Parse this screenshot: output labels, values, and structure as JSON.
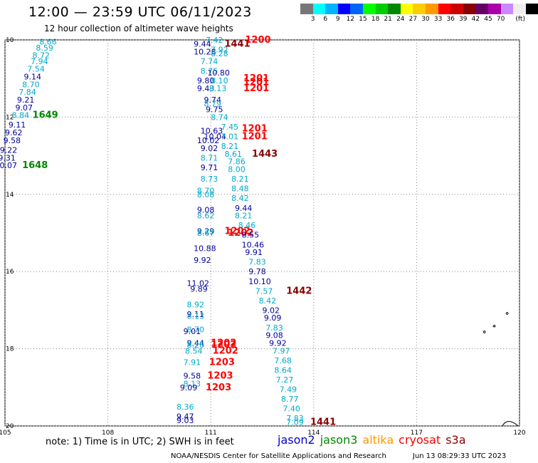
{
  "header": {
    "title": "12:00 — 23:59 UTC 06/11/2023",
    "subtitle": "12 hour collection of altimeter wave heights"
  },
  "colorbar": {
    "colors": [
      "#777777",
      "#00ffff",
      "#00b4ff",
      "#0000ff",
      "#0066ff",
      "#00ff00",
      "#00cc00",
      "#008800",
      "#ffff00",
      "#ffcc00",
      "#ff9900",
      "#ff0000",
      "#cc0000",
      "#880000",
      "#660066",
      "#aa00aa",
      "#cc88ff",
      "#eeeeee",
      "#000000"
    ],
    "labels": [
      "3",
      "6",
      "9",
      "12",
      "15",
      "18",
      "21",
      "24",
      "27",
      "30",
      "33",
      "36",
      "39",
      "42",
      "45",
      "70",
      "(ft)"
    ]
  },
  "axes": {
    "lat_ticks": [
      "10",
      "12",
      "14",
      "16",
      "18",
      "20"
    ],
    "lon_ticks": [
      "105",
      "108",
      "111",
      "114",
      "117",
      "120"
    ],
    "lon_range": [
      105,
      120
    ],
    "lat_range": [
      10,
      20
    ]
  },
  "sat_colors": {
    "jason2": "#0000cc",
    "jason3": "#008800",
    "altika": "#ff9900",
    "cryosat": "#ff0000",
    "s3a": "#880000",
    "cyan": "#00aacc",
    "darkblue": "#000099"
  },
  "observations": [
    {
      "text": "8.66",
      "lon": 106.0,
      "lat": 10.05,
      "c": "cyan"
    },
    {
      "text": "8.59",
      "lon": 105.9,
      "lat": 10.2,
      "c": "cyan"
    },
    {
      "text": "8.72",
      "lon": 105.8,
      "lat": 10.4,
      "c": "cyan"
    },
    {
      "text": "7.94",
      "lon": 105.75,
      "lat": 10.55,
      "c": "cyan"
    },
    {
      "text": "7.54",
      "lon": 105.65,
      "lat": 10.75,
      "c": "cyan"
    },
    {
      "text": "9.14",
      "lon": 105.55,
      "lat": 10.95,
      "c": "darkblue"
    },
    {
      "text": "8.70",
      "lon": 105.5,
      "lat": 11.15,
      "c": "cyan"
    },
    {
      "text": "7.84",
      "lon": 105.4,
      "lat": 11.35,
      "c": "cyan"
    },
    {
      "text": "9.21",
      "lon": 105.35,
      "lat": 11.55,
      "c": "darkblue"
    },
    {
      "text": "9.07",
      "lon": 105.3,
      "lat": 11.75,
      "c": "darkblue"
    },
    {
      "text": "8.84",
      "lon": 105.2,
      "lat": 11.95,
      "c": "cyan"
    },
    {
      "text": "9.11",
      "lon": 105.1,
      "lat": 12.2,
      "c": "darkblue"
    },
    {
      "text": "9.62",
      "lon": 105.0,
      "lat": 12.4,
      "c": "darkblue"
    },
    {
      "text": "9.58",
      "lon": 104.95,
      "lat": 12.6,
      "c": "darkblue"
    },
    {
      "text": "9.22",
      "lon": 104.85,
      "lat": 12.85,
      "c": "darkblue"
    },
    {
      "text": "9.31",
      "lon": 104.8,
      "lat": 13.05,
      "c": "darkblue"
    },
    {
      "text": "10.07",
      "lon": 104.7,
      "lat": 13.25,
      "c": "darkblue"
    },
    {
      "text": "1649",
      "lon": 105.8,
      "lat": 11.95,
      "c": "jason3",
      "big": true
    },
    {
      "text": "1648",
      "lon": 105.5,
      "lat": 13.25,
      "c": "jason3",
      "big": true
    },
    {
      "text": "7.42",
      "lon": 110.85,
      "lat": 10.0,
      "c": "cyan"
    },
    {
      "text": "9.44",
      "lon": 110.5,
      "lat": 10.1,
      "c": "darkblue"
    },
    {
      "text": "1441",
      "lon": 111.4,
      "lat": 10.1,
      "c": "s3a",
      "big": true
    },
    {
      "text": "1200",
      "lon": 112.0,
      "lat": 10.0,
      "c": "cryosat",
      "big": true
    },
    {
      "text": "7.92",
      "lon": 111.0,
      "lat": 10.25,
      "c": "cyan"
    },
    {
      "text": "10.28",
      "lon": 110.5,
      "lat": 10.3,
      "c": "darkblue"
    },
    {
      "text": "8.28",
      "lon": 111.0,
      "lat": 10.35,
      "c": "cyan"
    },
    {
      "text": "7.74",
      "lon": 110.7,
      "lat": 10.55,
      "c": "cyan"
    },
    {
      "text": "8.75",
      "lon": 110.7,
      "lat": 10.8,
      "c": "cyan"
    },
    {
      "text": "10.80",
      "lon": 110.9,
      "lat": 10.85,
      "c": "darkblue"
    },
    {
      "text": "9.80",
      "lon": 110.6,
      "lat": 11.05,
      "c": "darkblue"
    },
    {
      "text": "8.10",
      "lon": 111.0,
      "lat": 11.05,
      "c": "cyan"
    },
    {
      "text": "1201",
      "lon": 111.95,
      "lat": 11.0,
      "c": "cryosat",
      "big": true
    },
    {
      "text": "1201",
      "lon": 111.95,
      "lat": 11.1,
      "c": "cryosat",
      "big": true
    },
    {
      "text": "9.43",
      "lon": 110.6,
      "lat": 11.25,
      "c": "darkblue"
    },
    {
      "text": "8.13",
      "lon": 110.95,
      "lat": 11.25,
      "c": "cyan"
    },
    {
      "text": "1201",
      "lon": 111.95,
      "lat": 11.25,
      "c": "cryosat",
      "big": true
    },
    {
      "text": "9.74",
      "lon": 110.8,
      "lat": 11.55,
      "c": "darkblue"
    },
    {
      "text": "8.79",
      "lon": 110.8,
      "lat": 11.65,
      "c": "cyan"
    },
    {
      "text": "9.75",
      "lon": 110.85,
      "lat": 11.8,
      "c": "darkblue"
    },
    {
      "text": "8.74",
      "lon": 111.0,
      "lat": 12.0,
      "c": "cyan"
    },
    {
      "text": "7.45",
      "lon": 111.3,
      "lat": 12.25,
      "c": "cyan"
    },
    {
      "text": "10.63",
      "lon": 110.7,
      "lat": 12.35,
      "c": "darkblue"
    },
    {
      "text": "1201",
      "lon": 111.9,
      "lat": 12.3,
      "c": "cryosat",
      "big": true
    },
    {
      "text": "10.04",
      "lon": 110.8,
      "lat": 12.5,
      "c": "darkblue"
    },
    {
      "text": "7.01",
      "lon": 111.3,
      "lat": 12.5,
      "c": "cyan"
    },
    {
      "text": "1201",
      "lon": 111.9,
      "lat": 12.5,
      "c": "cryosat",
      "big": true
    },
    {
      "text": "10.02",
      "lon": 110.6,
      "lat": 12.6,
      "c": "darkblue"
    },
    {
      "text": "9.02",
      "lon": 110.7,
      "lat": 12.8,
      "c": "darkblue"
    },
    {
      "text": "8.21",
      "lon": 111.3,
      "lat": 12.75,
      "c": "cyan"
    },
    {
      "text": "8.61",
      "lon": 111.4,
      "lat": 12.95,
      "c": "cyan"
    },
    {
      "text": "1443",
      "lon": 112.2,
      "lat": 12.95,
      "c": "s3a",
      "big": true
    },
    {
      "text": "8.71",
      "lon": 110.7,
      "lat": 13.05,
      "c": "cyan"
    },
    {
      "text": "7.86",
      "lon": 111.5,
      "lat": 13.15,
      "c": "cyan"
    },
    {
      "text": "9.71",
      "lon": 110.7,
      "lat": 13.3,
      "c": "darkblue"
    },
    {
      "text": "8.00",
      "lon": 111.5,
      "lat": 13.35,
      "c": "cyan"
    },
    {
      "text": "8.73",
      "lon": 110.7,
      "lat": 13.6,
      "c": "cyan"
    },
    {
      "text": "8.21",
      "lon": 111.6,
      "lat": 13.6,
      "c": "cyan"
    },
    {
      "text": "8.48",
      "lon": 111.6,
      "lat": 13.85,
      "c": "cyan"
    },
    {
      "text": "8.70",
      "lon": 110.6,
      "lat": 13.9,
      "c": "cyan"
    },
    {
      "text": "8.08",
      "lon": 110.6,
      "lat": 14.0,
      "c": "cyan"
    },
    {
      "text": "8.42",
      "lon": 111.6,
      "lat": 14.1,
      "c": "cyan"
    },
    {
      "text": "9.44",
      "lon": 111.7,
      "lat": 14.35,
      "c": "darkblue"
    },
    {
      "text": "9.08",
      "lon": 110.6,
      "lat": 14.4,
      "c": "darkblue"
    },
    {
      "text": "8.62",
      "lon": 110.6,
      "lat": 14.55,
      "c": "cyan"
    },
    {
      "text": "8.21",
      "lon": 111.7,
      "lat": 14.55,
      "c": "cyan"
    },
    {
      "text": "8.46",
      "lon": 111.8,
      "lat": 14.8,
      "c": "cyan"
    },
    {
      "text": "9.29",
      "lon": 110.6,
      "lat": 14.95,
      "c": "darkblue"
    },
    {
      "text": "1202",
      "lon": 111.4,
      "lat": 14.95,
      "c": "cryosat",
      "big": true
    },
    {
      "text": "8.67",
      "lon": 110.6,
      "lat": 15.0,
      "c": "cyan"
    },
    {
      "text": "1202",
      "lon": 111.5,
      "lat": 15.0,
      "c": "cryosat",
      "big": true
    },
    {
      "text": "8.55",
      "lon": 111.9,
      "lat": 15.05,
      "c": "darkblue"
    },
    {
      "text": "10.46",
      "lon": 111.9,
      "lat": 15.3,
      "c": "darkblue"
    },
    {
      "text": "10.88",
      "lon": 110.5,
      "lat": 15.4,
      "c": "darkblue"
    },
    {
      "text": "9.91",
      "lon": 112.0,
      "lat": 15.5,
      "c": "darkblue"
    },
    {
      "text": "9.92",
      "lon": 110.5,
      "lat": 15.7,
      "c": "darkblue"
    },
    {
      "text": "7.83",
      "lon": 112.1,
      "lat": 15.75,
      "c": "cyan"
    },
    {
      "text": "9.78",
      "lon": 112.1,
      "lat": 16.0,
      "c": "darkblue"
    },
    {
      "text": "10.10",
      "lon": 112.1,
      "lat": 16.25,
      "c": "darkblue"
    },
    {
      "text": "11.02",
      "lon": 110.3,
      "lat": 16.3,
      "c": "darkblue"
    },
    {
      "text": "9.89",
      "lon": 110.4,
      "lat": 16.45,
      "c": "darkblue"
    },
    {
      "text": "7.57",
      "lon": 112.3,
      "lat": 16.5,
      "c": "cyan"
    },
    {
      "text": "1442",
      "lon": 113.2,
      "lat": 16.5,
      "c": "s3a",
      "big": true
    },
    {
      "text": "8.42",
      "lon": 112.4,
      "lat": 16.75,
      "c": "cyan"
    },
    {
      "text": "8.92",
      "lon": 110.3,
      "lat": 16.85,
      "c": "cyan"
    },
    {
      "text": "9.02",
      "lon": 112.5,
      "lat": 17.0,
      "c": "darkblue"
    },
    {
      "text": "9.11",
      "lon": 110.3,
      "lat": 17.1,
      "c": "darkblue"
    },
    {
      "text": "8.13",
      "lon": 110.3,
      "lat": 17.15,
      "c": "cyan"
    },
    {
      "text": "9.09",
      "lon": 112.55,
      "lat": 17.2,
      "c": "darkblue"
    },
    {
      "text": "7.83",
      "lon": 112.6,
      "lat": 17.45,
      "c": "cyan"
    },
    {
      "text": "8.70",
      "lon": 110.3,
      "lat": 17.5,
      "c": "cyan"
    },
    {
      "text": "9.01",
      "lon": 110.2,
      "lat": 17.55,
      "c": "darkblue"
    },
    {
      "text": "9.08",
      "lon": 112.6,
      "lat": 17.65,
      "c": "darkblue"
    },
    {
      "text": "9.44",
      "lon": 110.3,
      "lat": 17.85,
      "c": "darkblue"
    },
    {
      "text": "1202",
      "lon": 111.0,
      "lat": 17.85,
      "c": "cryosat",
      "big": true
    },
    {
      "text": "9.92",
      "lon": 112.7,
      "lat": 17.85,
      "c": "darkblue"
    },
    {
      "text": "8.26",
      "lon": 110.3,
      "lat": 17.9,
      "c": "cyan"
    },
    {
      "text": "1202",
      "lon": 111.0,
      "lat": 17.9,
      "c": "cryosat",
      "big": true
    },
    {
      "text": "8.54",
      "lon": 110.25,
      "lat": 18.05,
      "c": "cyan"
    },
    {
      "text": "1202",
      "lon": 111.05,
      "lat": 18.05,
      "c": "cryosat",
      "big": true
    },
    {
      "text": "7.97",
      "lon": 112.8,
      "lat": 18.05,
      "c": "cyan"
    },
    {
      "text": "7.91",
      "lon": 110.2,
      "lat": 18.35,
      "c": "cyan"
    },
    {
      "text": "1203",
      "lon": 110.95,
      "lat": 18.35,
      "c": "cryosat",
      "big": true
    },
    {
      "text": "7.68",
      "lon": 112.85,
      "lat": 18.3,
      "c": "cyan"
    },
    {
      "text": "8.64",
      "lon": 112.85,
      "lat": 18.55,
      "c": "cyan"
    },
    {
      "text": "9.58",
      "lon": 110.2,
      "lat": 18.7,
      "c": "darkblue"
    },
    {
      "text": "1203",
      "lon": 110.9,
      "lat": 18.7,
      "c": "cryosat",
      "big": true
    },
    {
      "text": "7.27",
      "lon": 112.9,
      "lat": 18.8,
      "c": "cyan"
    },
    {
      "text": "8.13",
      "lon": 110.2,
      "lat": 18.9,
      "c": "cyan"
    },
    {
      "text": "9.09",
      "lon": 110.1,
      "lat": 19.0,
      "c": "darkblue"
    },
    {
      "text": "1203",
      "lon": 110.85,
      "lat": 19.0,
      "c": "cryosat",
      "big": true
    },
    {
      "text": "7.49",
      "lon": 113.0,
      "lat": 19.05,
      "c": "cyan"
    },
    {
      "text": "8.77",
      "lon": 113.05,
      "lat": 19.3,
      "c": "cyan"
    },
    {
      "text": "8.36",
      "lon": 110.0,
      "lat": 19.5,
      "c": "cyan"
    },
    {
      "text": "7.40",
      "lon": 113.1,
      "lat": 19.55,
      "c": "cyan"
    },
    {
      "text": "9.47",
      "lon": 110.0,
      "lat": 19.75,
      "c": "darkblue"
    },
    {
      "text": "7.83",
      "lon": 113.2,
      "lat": 19.8,
      "c": "cyan"
    },
    {
      "text": "9.03",
      "lon": 110.0,
      "lat": 19.85,
      "c": "darkblue"
    },
    {
      "text": "7.09",
      "lon": 113.2,
      "lat": 19.9,
      "c": "cyan"
    },
    {
      "text": "1441",
      "lon": 113.9,
      "lat": 19.9,
      "c": "s3a",
      "big": true
    }
  ],
  "footer": {
    "note": "note: 1) Time is in UTC; 2) SWH is in feet",
    "legend": [
      {
        "label": "jason2",
        "c": "jason2"
      },
      {
        "label": "jason3",
        "c": "jason3"
      },
      {
        "label": "altika",
        "c": "altika"
      },
      {
        "label": "cryosat",
        "c": "cryosat"
      },
      {
        "label": "s3a",
        "c": "s3a"
      }
    ],
    "credit": "NOAA/NESDIS Center for Satellite Applications and Research",
    "timestamp": "Jun 13 08:29:33 UTC 2023"
  }
}
